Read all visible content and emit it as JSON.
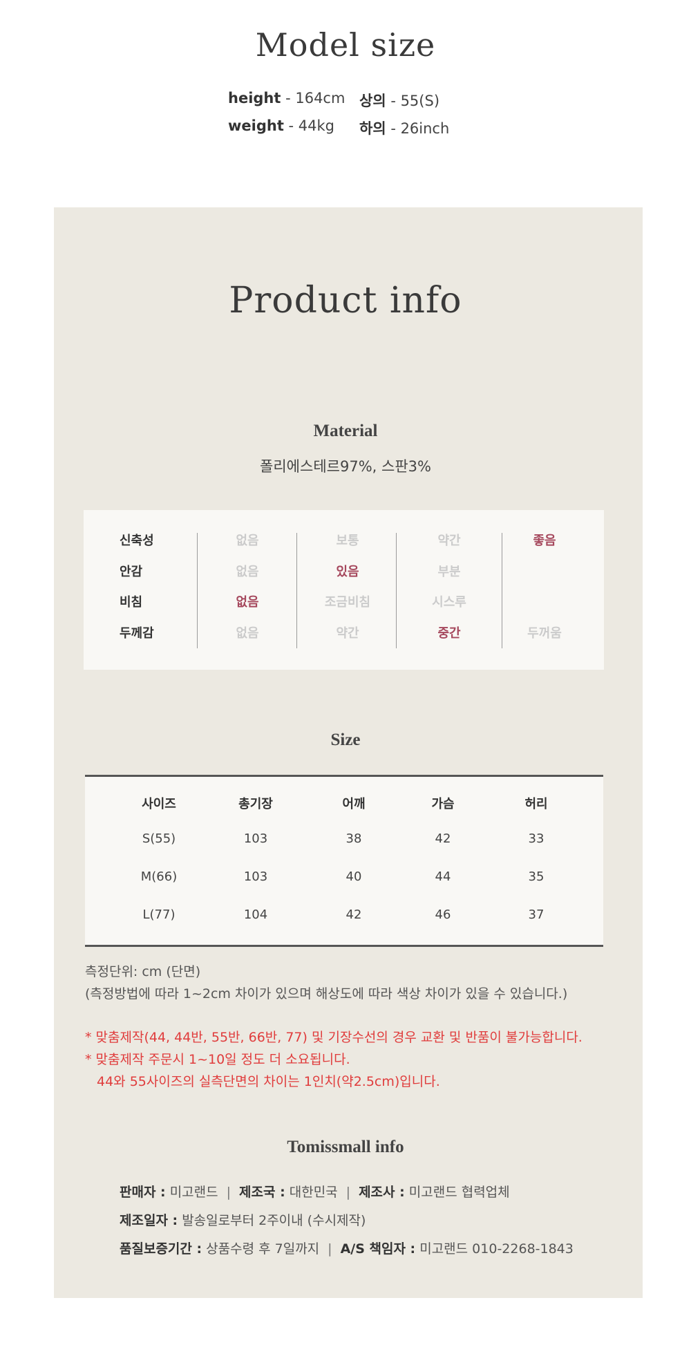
{
  "model": {
    "title": "Model size",
    "height_label": "height",
    "height_value": " - 164cm",
    "weight_label": "weight",
    "weight_value": " - 44kg",
    "top_label": "상의",
    "top_value": " - 55(S)",
    "bottom_label": "하의",
    "bottom_value": " - 26inch"
  },
  "product": {
    "title": "Product info",
    "material_heading": "Material",
    "material_text": "폴리에스테르97%, 스판3%"
  },
  "fabric": {
    "rows": [
      {
        "label": "신축성",
        "values": [
          "없음",
          "보통",
          "약간",
          "좋음"
        ],
        "selected": 3
      },
      {
        "label": "안감",
        "values": [
          "없음",
          "있음",
          "부분",
          ""
        ],
        "selected": 1
      },
      {
        "label": "비침",
        "values": [
          "없음",
          "조금비침",
          "시스루",
          ""
        ],
        "selected": 0
      },
      {
        "label": "두께감",
        "values": [
          "없음",
          "약간",
          "중간",
          "두꺼움"
        ],
        "selected": 2
      }
    ],
    "selected_color": "#a5475c",
    "unselected_color": "#cbcbcb"
  },
  "size": {
    "heading": "Size",
    "headers": [
      "사이즈",
      "총기장",
      "어깨",
      "가슴",
      "허리"
    ],
    "rows": [
      [
        "S(55)",
        "103",
        "38",
        "42",
        "33"
      ],
      [
        "M(66)",
        "103",
        "40",
        "44",
        "35"
      ],
      [
        "L(77)",
        "104",
        "42",
        "46",
        "37"
      ]
    ]
  },
  "notes": {
    "unit": "측정단위: cm (단면)",
    "disclaimer": "(측정방법에 따라 1~2cm 차이가 있으며 해상도에 따라 색상 차이가 있을 수 있습니다.)",
    "warning1": "* 맞춤제작(44, 44반, 55반, 66반, 77) 및 기장수선의 경우 교환 및 반품이 불가능합니다.",
    "warning2": "* 맞춤제작 주문시 1~10일 정도 더 소요됩니다.",
    "warning3": "44와 55사이즈의 실측단면의 차이는 1인치(약2.5cm)입니다.",
    "warning_color": "#e03c3c"
  },
  "shop": {
    "heading": "Tomissmall info",
    "separator": "|",
    "seller_label": "판매자 :",
    "seller": "미고랜드",
    "country_label": "제조국 :",
    "country": "대한민국",
    "maker_label": "제조사 :",
    "maker": "미고랜드 협력업체",
    "date_label": "제조일자 :",
    "date": "발송일로부터 2주이내 (수시제작)",
    "warranty_label": "품질보증기간 :",
    "warranty": "상품수령 후 7일까지",
    "as_label": "A/S 책임자 :",
    "as": "미고랜드 010-2268-1843"
  }
}
